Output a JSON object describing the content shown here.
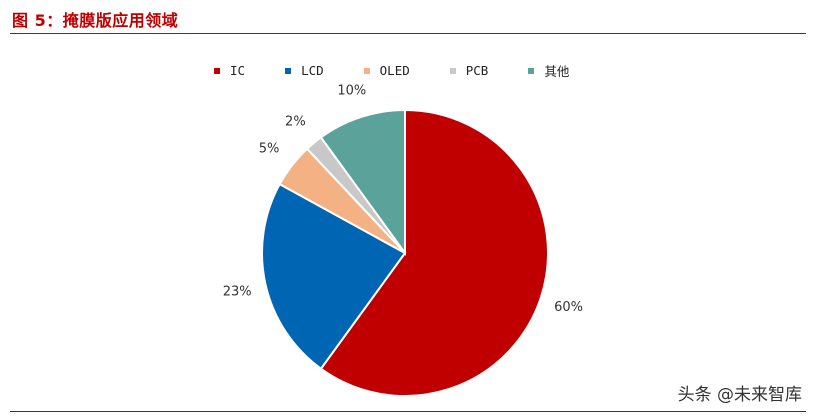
{
  "figure": {
    "title": "图 5：掩膜版应用领域"
  },
  "watermark": {
    "text": "头条 @未来智库"
  },
  "chart_data": {
    "type": "pie",
    "categories": [
      "IC",
      "LCD",
      "OLED",
      "PCB",
      "其他"
    ],
    "values": [
      60,
      23,
      5,
      2,
      10
    ],
    "value_labels": [
      "60%",
      "23%",
      "5%",
      "2%",
      "10%"
    ],
    "colors": [
      "#c00000",
      "#0066b3",
      "#f4b183",
      "#c8c8c8",
      "#5ba39a"
    ],
    "legend_position": "top",
    "start": "12 o'clock",
    "direction": "clockwise"
  }
}
